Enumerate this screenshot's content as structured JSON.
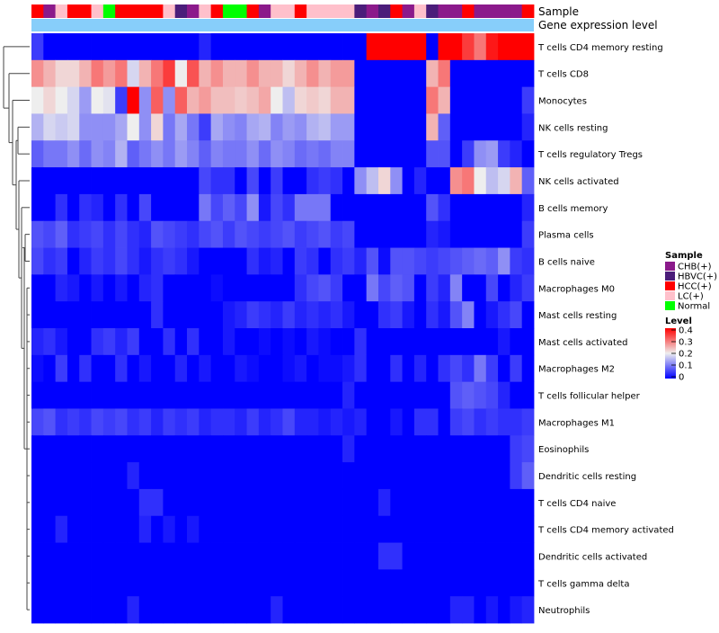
{
  "chart_data": {
    "type": "heatmap",
    "title": "",
    "annotation_tracks": [
      "Sample",
      "Gene expression level"
    ],
    "sample_groups": [
      "HCC(+)",
      "CHB(+)",
      "LC(+)",
      "HCC(+)",
      "HCC(+)",
      "LC(+)",
      "Normal",
      "HCC(+)",
      "HCC(+)",
      "HCC(+)",
      "HCC(+)",
      "LC(+)",
      "HBVC(+)",
      "CHB(+)",
      "LC(+)",
      "HCC(+)",
      "Normal",
      "Normal",
      "HCC(+)",
      "CHB(+)",
      "LC(+)",
      "LC(+)",
      "HCC(+)",
      "LC(+)",
      "LC(+)",
      "LC(+)",
      "LC(+)",
      "HBVC(+)",
      "CHB(+)",
      "HBVC(+)",
      "HCC(+)",
      "CHB(+)",
      "LC(+)",
      "HBVC(+)",
      "CHB(+)",
      "CHB(+)",
      "HCC(+)",
      "CHB(+)",
      "CHB(+)",
      "CHB(+)",
      "CHB(+)",
      "HCC(+)"
    ],
    "rows": [
      "T cells CD4 memory resting",
      "T cells CD8",
      "Monocytes",
      "NK cells resting",
      "T cells regulatory  Tregs",
      "NK cells activated",
      "B cells memory",
      "Plasma cells",
      "B cells naive",
      "Macrophages M0",
      "Mast cells resting",
      "Mast cells activated",
      "Macrophages M2",
      "T cells follicular helper",
      "Macrophages M1",
      "Eosinophils",
      "Dendritic cells resting",
      "T cells CD4 naive",
      "T cells CD4 memory activated",
      "Dendritic cells activated",
      "T cells gamma delta",
      "Neutrophils"
    ],
    "values": [
      [
        0.05,
        0,
        0,
        0,
        0,
        0,
        0,
        0,
        0,
        0,
        0,
        0,
        0,
        0,
        0.03,
        0,
        0,
        0,
        0,
        0,
        0,
        0,
        0,
        0,
        0,
        0,
        0,
        0,
        0.4,
        0.4,
        0.4,
        0.4,
        0.4,
        0,
        0.4,
        0.4,
        0.35,
        0.3,
        0.38,
        0.4,
        0.4,
        0.4
      ],
      [
        0.28,
        0.25,
        0.22,
        0.22,
        0.25,
        0.3,
        0.27,
        0.3,
        0.18,
        0.25,
        0.3,
        0.35,
        0.2,
        0.33,
        0.25,
        0.28,
        0.25,
        0.25,
        0.28,
        0.25,
        0.25,
        0.22,
        0.25,
        0.28,
        0.25,
        0.27,
        0.27,
        0,
        0,
        0,
        0,
        0,
        0,
        0.25,
        0.3,
        0,
        0,
        0,
        0,
        0,
        0,
        0
      ],
      [
        0.2,
        0.22,
        0.2,
        0.18,
        0.13,
        0.2,
        0.19,
        0.05,
        0.4,
        0.12,
        0.32,
        0.12,
        0.32,
        0.25,
        0.27,
        0.24,
        0.24,
        0.23,
        0.24,
        0.26,
        0.2,
        0.16,
        0.22,
        0.23,
        0.22,
        0.25,
        0.25,
        0,
        0,
        0,
        0,
        0,
        0,
        0.3,
        0.25,
        0,
        0,
        0,
        0,
        0,
        0,
        0.05
      ],
      [
        0.15,
        0.18,
        0.17,
        0.18,
        0.12,
        0.12,
        0.12,
        0.14,
        0.2,
        0.12,
        0.22,
        0.1,
        0.14,
        0.1,
        0.05,
        0.14,
        0.12,
        0.11,
        0.14,
        0.15,
        0.11,
        0.13,
        0.12,
        0.15,
        0.16,
        0.13,
        0.13,
        0,
        0,
        0,
        0,
        0,
        0,
        0.25,
        0.08,
        0,
        0,
        0,
        0,
        0,
        0,
        0.03
      ],
      [
        0.08,
        0.1,
        0.1,
        0.12,
        0.09,
        0.12,
        0.11,
        0.15,
        0.08,
        0.1,
        0.12,
        0.1,
        0.13,
        0.11,
        0.08,
        0.11,
        0.1,
        0.1,
        0.12,
        0.09,
        0.12,
        0.11,
        0.09,
        0.1,
        0.09,
        0.11,
        0.11,
        0,
        0,
        0,
        0,
        0,
        0,
        0.07,
        0.07,
        0,
        0.05,
        0.12,
        0.13,
        0.05,
        0.03,
        0
      ],
      [
        0,
        0,
        0,
        0,
        0,
        0,
        0,
        0,
        0,
        0,
        0,
        0,
        0,
        0,
        0.06,
        0.04,
        0.04,
        0,
        0.06,
        0,
        0.05,
        0,
        0,
        0.04,
        0.05,
        0.04,
        0,
        0.12,
        0.16,
        0.22,
        0.12,
        0,
        0.03,
        0,
        0,
        0.28,
        0.3,
        0.2,
        0.16,
        0.18,
        0.25,
        0.08
      ],
      [
        0,
        0,
        0.04,
        0,
        0.04,
        0.03,
        0,
        0.04,
        0,
        0.06,
        0,
        0,
        0,
        0,
        0.1,
        0.06,
        0.08,
        0.06,
        0.12,
        0.02,
        0.06,
        0.04,
        0.1,
        0.1,
        0.1,
        0,
        0,
        0,
        0,
        0,
        0,
        0,
        0,
        0.07,
        0.04,
        0,
        0,
        0,
        0,
        0,
        0,
        0.03
      ],
      [
        0.07,
        0.06,
        0.08,
        0.04,
        0.05,
        0.06,
        0.04,
        0.06,
        0.04,
        0.03,
        0.07,
        0.06,
        0.05,
        0.04,
        0.06,
        0.07,
        0.05,
        0.07,
        0.06,
        0.05,
        0.06,
        0.07,
        0.05,
        0.06,
        0.07,
        0.05,
        0.06,
        0,
        0,
        0,
        0,
        0,
        0,
        0.03,
        0.02,
        0,
        0,
        0,
        0,
        0,
        0,
        0.05
      ],
      [
        0.06,
        0.04,
        0.05,
        0,
        0.03,
        0.05,
        0.04,
        0.06,
        0.04,
        0.02,
        0.04,
        0.05,
        0.04,
        0.02,
        0,
        0,
        0,
        0,
        0.04,
        0.02,
        0.03,
        0,
        0.05,
        0.04,
        0,
        0.04,
        0.05,
        0.03,
        0.07,
        0.01,
        0.07,
        0.07,
        0.06,
        0.05,
        0.06,
        0.07,
        0.08,
        0.09,
        0.08,
        0.12,
        0.05,
        0.04
      ],
      [
        0,
        0,
        0.03,
        0.02,
        0,
        0.02,
        0,
        0.02,
        0,
        0.03,
        0.04,
        0,
        0,
        0,
        0,
        0.01,
        0,
        0,
        0,
        0,
        0,
        0,
        0.04,
        0.06,
        0.07,
        0.05,
        0,
        0,
        0.1,
        0.06,
        0.08,
        0.07,
        0,
        0.05,
        0.03,
        0.11,
        0,
        0,
        0.06,
        0,
        0.03,
        0.05
      ],
      [
        0,
        0,
        0,
        0,
        0,
        0,
        0,
        0,
        0,
        0,
        0.04,
        0,
        0,
        0,
        0,
        0,
        0.02,
        0.03,
        0.05,
        0.04,
        0.03,
        0.05,
        0.03,
        0.04,
        0.03,
        0.04,
        0.02,
        0,
        0,
        0.04,
        0.05,
        0.02,
        0,
        0.04,
        0.02,
        0.07,
        0.11,
        0,
        0.02,
        0.04,
        0.06,
        0
      ],
      [
        0.03,
        0.04,
        0.02,
        0,
        0,
        0.04,
        0.05,
        0.03,
        0.05,
        0,
        0,
        0.04,
        0,
        0.04,
        0,
        0,
        0.02,
        0,
        0,
        0.01,
        0,
        0.01,
        0,
        0.02,
        0.01,
        0,
        0,
        0.04,
        0,
        0,
        0,
        0,
        0,
        0,
        0,
        0,
        0,
        0,
        0,
        0.02,
        0,
        0
      ],
      [
        0.01,
        0,
        0.05,
        0,
        0.04,
        0,
        0,
        0.04,
        0,
        0.02,
        0,
        0,
        0.03,
        0,
        0.02,
        0,
        0,
        0.02,
        0.01,
        0,
        0,
        0.01,
        0.02,
        0,
        0.01,
        0.01,
        0.02,
        0.04,
        0,
        0,
        0.04,
        0,
        0.03,
        0,
        0.04,
        0.06,
        0.04,
        0.1,
        0.05,
        0,
        0.05,
        0
      ],
      [
        0,
        0,
        0,
        0,
        0,
        0,
        0,
        0,
        0,
        0,
        0,
        0,
        0,
        0,
        0,
        0,
        0,
        0,
        0,
        0,
        0,
        0,
        0,
        0,
        0,
        0,
        0.03,
        0,
        0,
        0,
        0,
        0,
        0,
        0,
        0,
        0.07,
        0.08,
        0.07,
        0.06,
        0.03,
        0,
        0
      ],
      [
        0.06,
        0.07,
        0.04,
        0.05,
        0.04,
        0.06,
        0.05,
        0.06,
        0.04,
        0.05,
        0.03,
        0.05,
        0.04,
        0.05,
        0.03,
        0.04,
        0.04,
        0.03,
        0.05,
        0.03,
        0.04,
        0.06,
        0.03,
        0.03,
        0.02,
        0.03,
        0.02,
        0.03,
        0,
        0,
        0.02,
        0,
        0.04,
        0.04,
        0,
        0.05,
        0.06,
        0.04,
        0.05,
        0.04,
        0.04,
        0.05
      ],
      [
        0,
        0,
        0,
        0,
        0,
        0,
        0,
        0,
        0,
        0,
        0,
        0,
        0,
        0,
        0,
        0,
        0,
        0,
        0,
        0,
        0,
        0,
        0,
        0,
        0,
        0,
        0.03,
        0,
        0,
        0,
        0,
        0,
        0,
        0,
        0,
        0,
        0,
        0,
        0,
        0,
        0.05,
        0.06
      ],
      [
        0,
        0,
        0,
        0,
        0,
        0,
        0,
        0,
        0.03,
        0,
        0,
        0,
        0,
        0,
        0,
        0,
        0,
        0,
        0,
        0,
        0,
        0,
        0,
        0,
        0,
        0,
        0,
        0,
        0,
        0,
        0,
        0,
        0,
        0,
        0,
        0,
        0,
        0,
        0,
        0,
        0.05,
        0.08
      ],
      [
        0,
        0,
        0,
        0,
        0,
        0,
        0,
        0,
        0,
        0.04,
        0.04,
        0,
        0,
        0,
        0,
        0,
        0,
        0,
        0,
        0,
        0,
        0,
        0,
        0,
        0,
        0,
        0,
        0,
        0,
        0.03,
        0,
        0,
        0,
        0,
        0,
        0,
        0,
        0,
        0,
        0,
        0,
        0
      ],
      [
        0,
        0,
        0.03,
        0,
        0,
        0,
        0,
        0,
        0,
        0.03,
        0,
        0.02,
        0,
        0.02,
        0,
        0,
        0,
        0,
        0,
        0,
        0,
        0,
        0,
        0,
        0,
        0,
        0,
        0,
        0,
        0,
        0,
        0,
        0,
        0,
        0,
        0,
        0,
        0,
        0,
        0,
        0,
        0
      ],
      [
        0,
        0,
        0,
        0,
        0,
        0,
        0,
        0,
        0,
        0,
        0,
        0,
        0,
        0,
        0,
        0,
        0,
        0,
        0,
        0,
        0,
        0,
        0,
        0,
        0,
        0,
        0,
        0,
        0,
        0.04,
        0.04,
        0,
        0,
        0,
        0,
        0,
        0,
        0,
        0,
        0,
        0,
        0
      ],
      [
        0,
        0,
        0,
        0,
        0,
        0,
        0,
        0,
        0,
        0,
        0,
        0,
        0,
        0,
        0,
        0,
        0,
        0,
        0,
        0,
        0,
        0,
        0,
        0,
        0,
        0,
        0,
        0,
        0,
        0,
        0,
        0,
        0,
        0,
        0,
        0,
        0,
        0,
        0,
        0,
        0,
        0
      ],
      [
        0,
        0,
        0,
        0,
        0,
        0,
        0,
        0,
        0.03,
        0,
        0,
        0,
        0,
        0,
        0,
        0,
        0,
        0,
        0,
        0,
        0.03,
        0,
        0,
        0,
        0,
        0,
        0,
        0,
        0,
        0,
        0,
        0,
        0,
        0,
        0,
        0.03,
        0.03,
        0,
        0.02,
        0,
        0.02,
        0.03
      ]
    ],
    "legend_sample": {
      "title": "Sample",
      "entries": [
        {
          "label": "CHB(+)",
          "color": "#8B1A8B"
        },
        {
          "label": "HBVC(+)",
          "color": "#4B1D7A"
        },
        {
          "label": "HCC(+)",
          "color": "#FF0000"
        },
        {
          "label": "LC(+)",
          "color": "#FFC0CB"
        },
        {
          "label": "Normal",
          "color": "#00FF00"
        }
      ]
    },
    "legend_level": {
      "title": "Level",
      "ticks": [
        "0.4",
        "0.3",
        "0.2",
        "0.1",
        "0"
      ],
      "range": [
        0,
        0.4
      ]
    },
    "colors": {
      "low": "#0000FF",
      "mid": "#EEEEEE",
      "high": "#FF0000",
      "expression_bar": "#87CEFA"
    }
  }
}
